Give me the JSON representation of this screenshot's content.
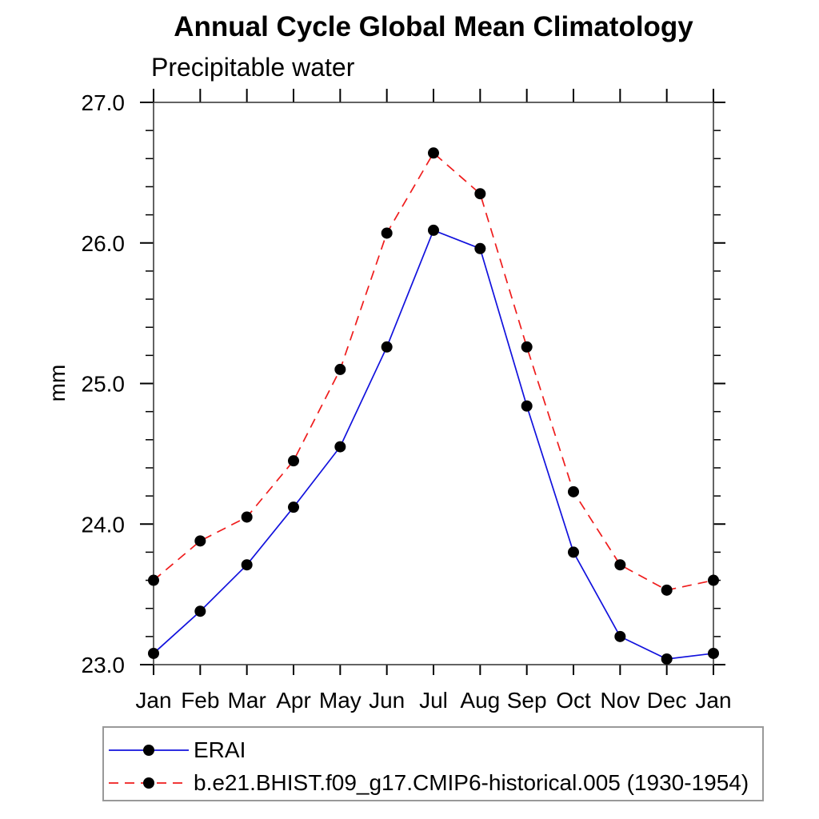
{
  "chart_data": {
    "type": "line",
    "title": "Annual Cycle Global Mean Climatology",
    "subtitle": "Precipitable water",
    "xlabel": "",
    "ylabel": "mm",
    "categories": [
      "Jan",
      "Feb",
      "Mar",
      "Apr",
      "May",
      "Jun",
      "Jul",
      "Aug",
      "Sep",
      "Oct",
      "Nov",
      "Dec",
      "Jan"
    ],
    "series": [
      {
        "name": "ERAI",
        "color": "#1111dd",
        "style": "solid",
        "marker": "filled-circle",
        "marker_color": "#000000",
        "values": [
          23.08,
          23.38,
          23.71,
          24.12,
          24.55,
          25.26,
          26.09,
          25.96,
          24.84,
          23.8,
          23.2,
          23.04,
          23.08
        ]
      },
      {
        "name": "b.e21.BHIST.f09_g17.CMIP6-historical.005 (1930-1954)",
        "color": "#ef1c1c",
        "style": "dashed",
        "marker": "filled-circle",
        "marker_color": "#000000",
        "values": [
          23.6,
          23.88,
          24.05,
          24.45,
          25.1,
          26.07,
          26.64,
          26.35,
          25.26,
          24.23,
          23.71,
          23.53,
          23.6
        ]
      }
    ],
    "ylim": [
      23.0,
      27.0
    ],
    "y_major_ticks": [
      23.0,
      24.0,
      25.0,
      26.0,
      27.0
    ],
    "y_tick_labels": [
      "23.0",
      "24.0",
      "25.0",
      "26.0",
      "27.0"
    ],
    "y_minor_step": 0.2,
    "grid": false,
    "tick_style": "outward-all-sides",
    "legend_position": "bottom-left-box",
    "axis_color": "#000000",
    "background_color": "#ffffff"
  }
}
